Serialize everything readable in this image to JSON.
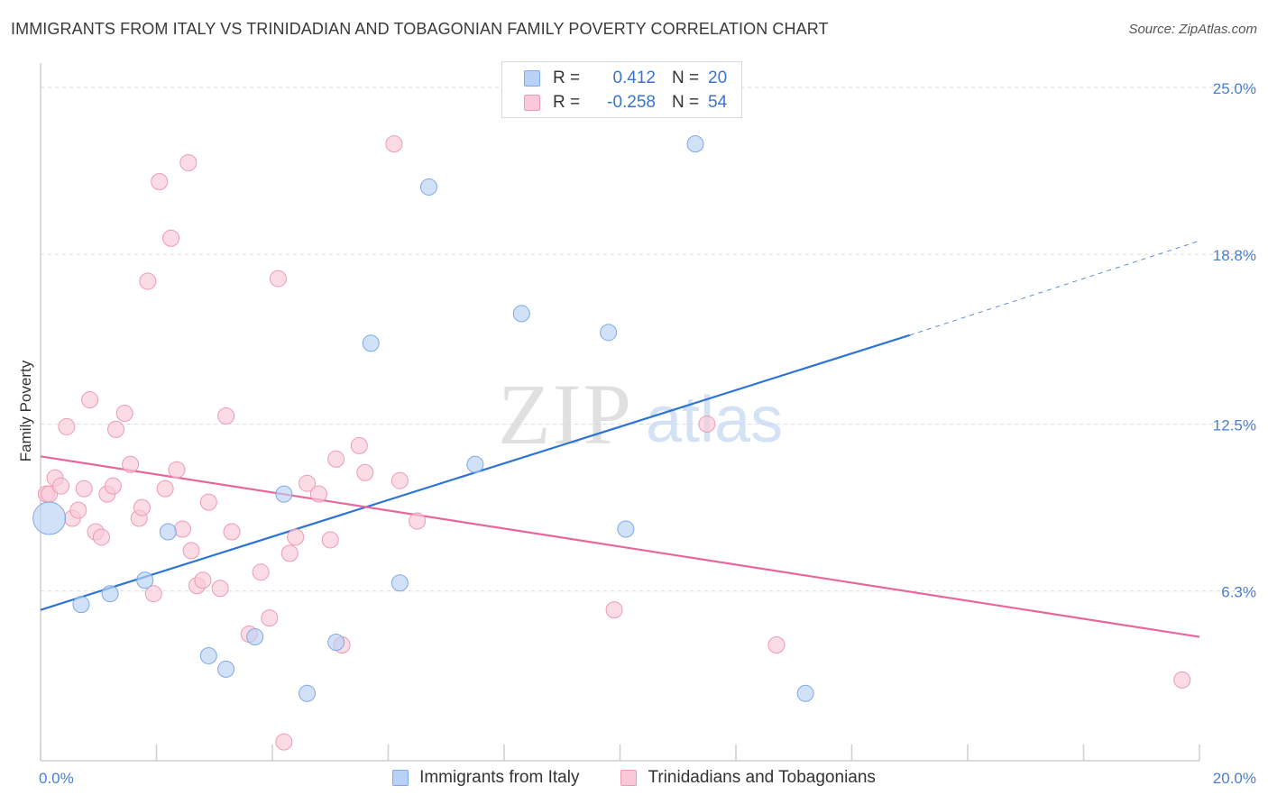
{
  "title": "IMMIGRANTS FROM ITALY VS TRINIDADIAN AND TOBAGONIAN FAMILY POVERTY CORRELATION CHART",
  "source": "Source: ZipAtlas.com",
  "watermark": {
    "zip": "ZIP",
    "atlas": "atlas"
  },
  "legend": {
    "rows": [
      {
        "r_label": "R =",
        "r_value": "0.412",
        "n_label": "N =",
        "n_value": "20",
        "fill": "#b9d2f5",
        "stroke": "#7ea8e6"
      },
      {
        "r_label": "R =",
        "r_value": "-0.258",
        "n_label": "N =",
        "n_value": "54",
        "fill": "#f9c9d7",
        "stroke": "#ee9ab3"
      }
    ]
  },
  "bottom_legend": [
    {
      "label": "Immigrants from Italy",
      "fill": "#b9d2f5",
      "stroke": "#7ea8e6"
    },
    {
      "label": "Trinidadians and Tobagonians",
      "fill": "#f9c9d7",
      "stroke": "#ee9ab3"
    }
  ],
  "chart_data": {
    "type": "scatter",
    "title": "IMMIGRANTS FROM ITALY VS TRINIDADIAN AND TOBAGONIAN FAMILY POVERTY CORRELATION CHART",
    "xlabel": "",
    "ylabel": "Family Poverty",
    "xlim": [
      0,
      20
    ],
    "ylim": [
      0,
      25.9
    ],
    "x_tick_labels": [
      "0.0%",
      "20.0%"
    ],
    "y_ticks": [
      6.3,
      12.5,
      18.8,
      25.0
    ],
    "y_tick_labels": [
      "6.3%",
      "12.5%",
      "18.8%",
      "25.0%"
    ],
    "grid": true,
    "colors": {
      "italy_line": "#2d74d4",
      "tt_line": "#e8679a",
      "italy_point": "#b9d2f5",
      "tt_point": "#f9c9d7"
    },
    "series": [
      {
        "name": "Immigrants from Italy",
        "R": 0.412,
        "N": 20,
        "trend": {
          "x0": 0,
          "y0": 5.6,
          "x1": 15.0,
          "y1": 15.8,
          "dash_to_x": 20.0,
          "dash_to_y": 19.3
        },
        "points": [
          [
            0.15,
            9.0,
            18
          ],
          [
            0.7,
            5.8,
            9
          ],
          [
            1.2,
            6.2,
            9
          ],
          [
            1.8,
            6.7,
            9
          ],
          [
            2.2,
            8.5,
            9
          ],
          [
            2.9,
            3.9,
            9
          ],
          [
            3.2,
            3.4,
            9
          ],
          [
            3.7,
            4.6,
            9
          ],
          [
            4.2,
            9.9,
            9
          ],
          [
            4.6,
            2.5,
            9
          ],
          [
            5.1,
            4.4,
            9
          ],
          [
            5.7,
            15.5,
            9
          ],
          [
            6.2,
            6.6,
            9
          ],
          [
            6.7,
            21.3,
            9
          ],
          [
            7.5,
            11.0,
            9
          ],
          [
            8.3,
            16.6,
            9
          ],
          [
            9.8,
            15.9,
            9
          ],
          [
            10.1,
            8.6,
            9
          ],
          [
            11.3,
            22.9,
            9
          ],
          [
            13.2,
            2.5,
            9
          ]
        ]
      },
      {
        "name": "Trinidadians and Tobagonians",
        "R": -0.258,
        "N": 54,
        "trend": {
          "x0": 0,
          "y0": 11.3,
          "x1": 20.0,
          "y1": 4.6
        },
        "points": [
          [
            0.1,
            9.9,
            9
          ],
          [
            0.15,
            9.9,
            9
          ],
          [
            0.25,
            10.5,
            9
          ],
          [
            0.35,
            10.2,
            9
          ],
          [
            0.45,
            12.4,
            9
          ],
          [
            0.55,
            9.0,
            9
          ],
          [
            0.65,
            9.3,
            9
          ],
          [
            0.75,
            10.1,
            9
          ],
          [
            0.85,
            13.4,
            9
          ],
          [
            0.95,
            8.5,
            9
          ],
          [
            1.05,
            8.3,
            9
          ],
          [
            1.15,
            9.9,
            9
          ],
          [
            1.25,
            10.2,
            9
          ],
          [
            1.3,
            12.3,
            9
          ],
          [
            1.45,
            12.9,
            9
          ],
          [
            1.55,
            11.0,
            9
          ],
          [
            1.7,
            9.0,
            9
          ],
          [
            1.75,
            9.4,
            9
          ],
          [
            1.85,
            17.8,
            9
          ],
          [
            1.95,
            6.2,
            9
          ],
          [
            2.05,
            21.5,
            9
          ],
          [
            2.15,
            10.1,
            9
          ],
          [
            2.25,
            19.4,
            9
          ],
          [
            2.35,
            10.8,
            9
          ],
          [
            2.45,
            8.6,
            9
          ],
          [
            2.55,
            22.2,
            9
          ],
          [
            2.6,
            7.8,
            9
          ],
          [
            2.7,
            6.5,
            9
          ],
          [
            2.8,
            6.7,
            9
          ],
          [
            2.9,
            9.6,
            9
          ],
          [
            3.1,
            6.4,
            9
          ],
          [
            3.2,
            12.8,
            9
          ],
          [
            3.3,
            8.5,
            9
          ],
          [
            3.6,
            4.7,
            9
          ],
          [
            3.8,
            7.0,
            9
          ],
          [
            3.95,
            5.3,
            9
          ],
          [
            4.1,
            17.9,
            9
          ],
          [
            4.2,
            0.7,
            9
          ],
          [
            4.3,
            7.7,
            9
          ],
          [
            4.4,
            8.3,
            9
          ],
          [
            4.6,
            10.3,
            9
          ],
          [
            4.8,
            9.9,
            9
          ],
          [
            5.0,
            8.2,
            9
          ],
          [
            5.1,
            11.2,
            9
          ],
          [
            5.2,
            4.3,
            9
          ],
          [
            5.5,
            11.7,
            9
          ],
          [
            5.6,
            10.7,
            9
          ],
          [
            6.1,
            22.9,
            9
          ],
          [
            6.2,
            10.4,
            9
          ],
          [
            6.5,
            8.9,
            9
          ],
          [
            9.9,
            5.6,
            9
          ],
          [
            11.5,
            12.5,
            9
          ],
          [
            12.7,
            4.3,
            9
          ],
          [
            19.7,
            3.0,
            9
          ]
        ]
      }
    ]
  }
}
